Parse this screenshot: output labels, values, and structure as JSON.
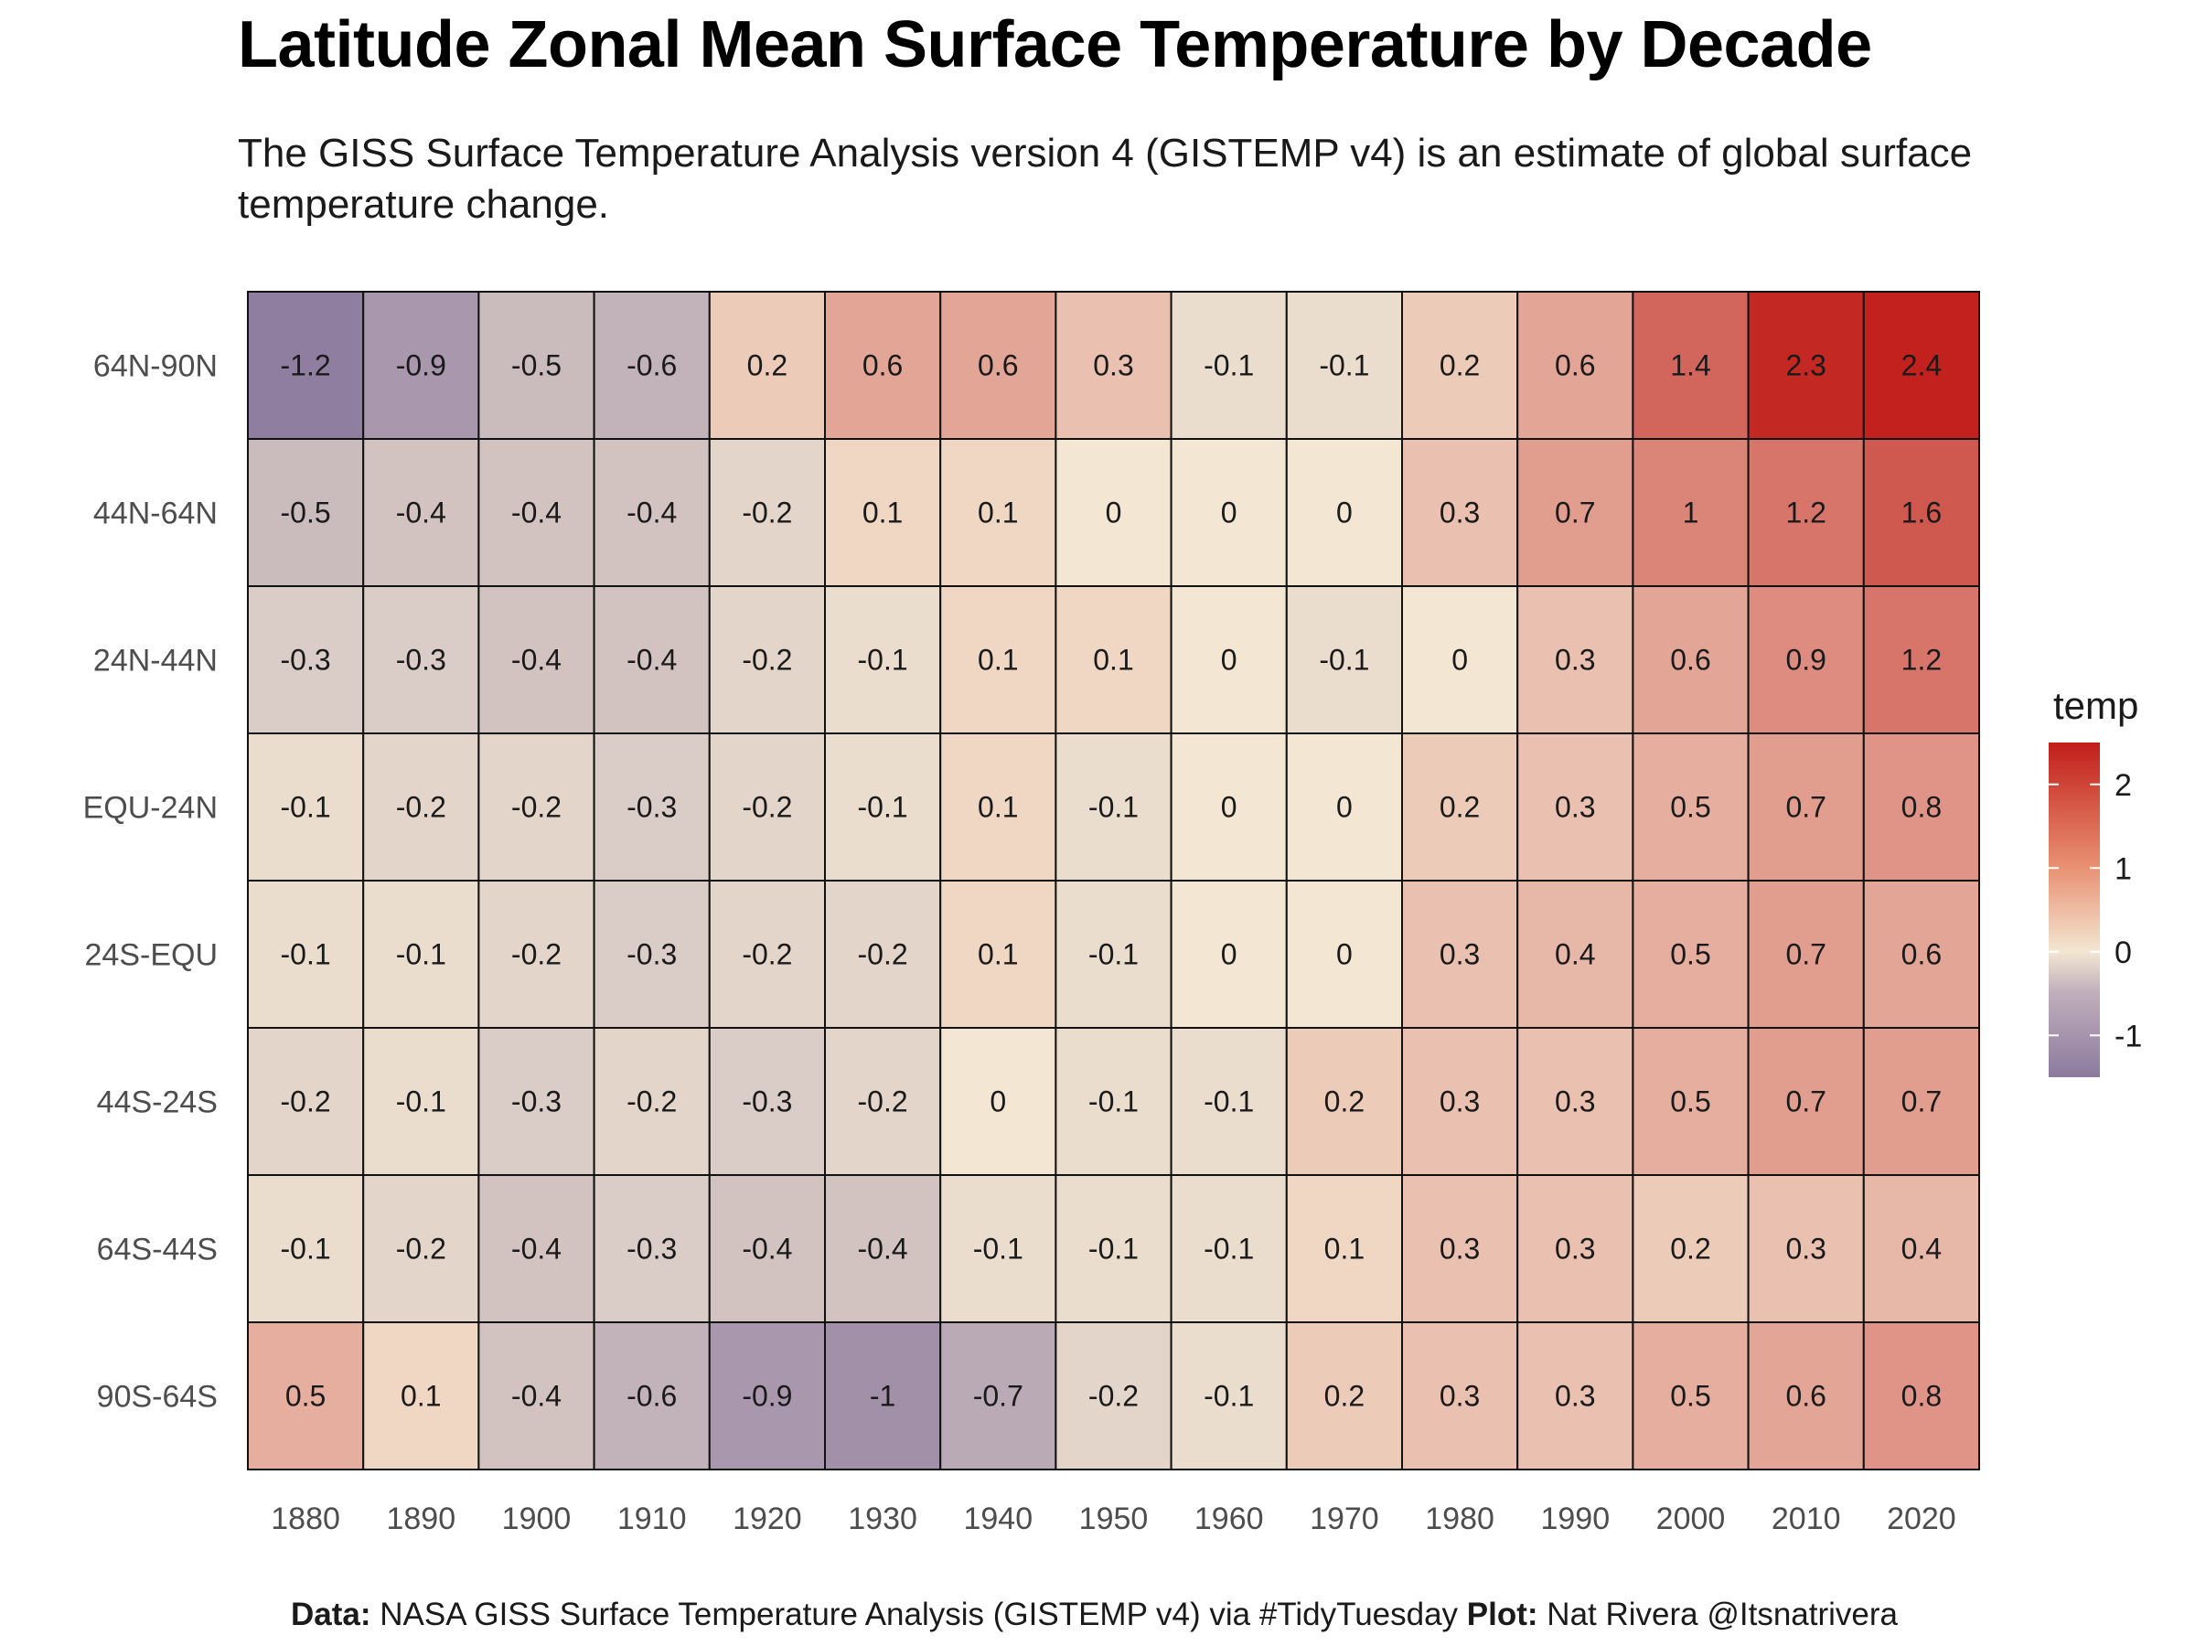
{
  "chart_data": {
    "type": "heatmap",
    "title": "Latitude Zonal Mean Surface Temperature by Decade",
    "subtitle": "The GISS Surface Temperature Analysis version 4 (GISTEMP v4) is an estimate of global surface temperature change.",
    "x": [
      "1880",
      "1890",
      "1900",
      "1910",
      "1920",
      "1930",
      "1940",
      "1950",
      "1960",
      "1970",
      "1980",
      "1990",
      "2000",
      "2010",
      "2020"
    ],
    "y": [
      "64N-90N",
      "44N-64N",
      "24N-44N",
      "EQU-24N",
      "24S-EQU",
      "44S-24S",
      "64S-44S",
      "90S-64S"
    ],
    "values": [
      [
        -1.2,
        -0.9,
        -0.5,
        -0.6,
        0.2,
        0.6,
        0.6,
        0.3,
        -0.1,
        -0.1,
        0.2,
        0.6,
        1.4,
        2.3,
        2.4
      ],
      [
        -0.5,
        -0.4,
        -0.4,
        -0.4,
        -0.2,
        0.1,
        0.1,
        0,
        0,
        0,
        0.3,
        0.7,
        1,
        1.2,
        1.6
      ],
      [
        -0.3,
        -0.3,
        -0.4,
        -0.4,
        -0.2,
        -0.1,
        0.1,
        0.1,
        0,
        -0.1,
        0,
        0.3,
        0.6,
        0.9,
        1.2
      ],
      [
        -0.1,
        -0.2,
        -0.2,
        -0.3,
        -0.2,
        -0.1,
        0.1,
        -0.1,
        0,
        0,
        0.2,
        0.3,
        0.5,
        0.7,
        0.8
      ],
      [
        -0.1,
        -0.1,
        -0.2,
        -0.3,
        -0.2,
        -0.2,
        0.1,
        -0.1,
        0,
        0,
        0.3,
        0.4,
        0.5,
        0.7,
        0.6
      ],
      [
        -0.2,
        -0.1,
        -0.3,
        -0.2,
        -0.3,
        -0.2,
        0,
        -0.1,
        -0.1,
        0.2,
        0.3,
        0.3,
        0.5,
        0.7,
        0.7
      ],
      [
        -0.1,
        -0.2,
        -0.4,
        -0.3,
        -0.4,
        -0.4,
        -0.1,
        -0.1,
        -0.1,
        0.1,
        0.3,
        0.3,
        0.2,
        0.3,
        0.4
      ],
      [
        0.5,
        0.1,
        -0.4,
        -0.6,
        -0.9,
        -1,
        -0.7,
        -0.2,
        -0.1,
        0.2,
        0.3,
        0.3,
        0.5,
        0.6,
        0.8
      ]
    ],
    "legend": {
      "title": "temp",
      "ticks": [
        2,
        1,
        0,
        -1
      ],
      "range": [
        -1.5,
        2.5
      ],
      "colors": {
        "low": "#8C7A9E",
        "mid": "#F3E6D2",
        "high": "#C11E1A"
      },
      "placement": "right"
    },
    "grid": false
  },
  "caption": {
    "data_label": "Data:",
    "data_text": " NASA GISS Surface Temperature Analysis (GISTEMP v4) via #TidyTuesday ",
    "plot_label": "Plot:",
    "plot_text": " Nat Rivera @Itsnatrivera"
  }
}
